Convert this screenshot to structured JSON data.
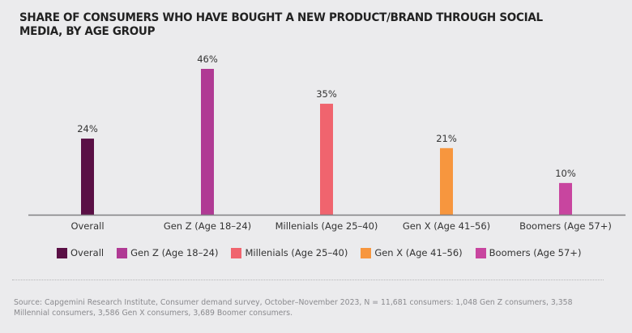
{
  "title": "SHARE OF CONSUMERS WHO HAVE BOUGHT A NEW PRODUCT/BRAND THROUGH SOCIAL MEDIA, BY AGE GROUP",
  "chart_data": {
    "type": "bar",
    "title": "SHARE OF CONSUMERS WHO HAVE BOUGHT A NEW PRODUCT/BRAND THROUGH SOCIAL MEDIA, BY AGE GROUP",
    "categories": [
      "Overall",
      "Gen Z (Age 18–24)",
      "Millenials (Age 25–40)",
      "Gen X (Age 41–56)",
      "Boomers (Age 57+)"
    ],
    "values": [
      24,
      46,
      35,
      21,
      10
    ],
    "value_labels": [
      "24%",
      "46%",
      "35%",
      "21%",
      "10%"
    ],
    "colors": [
      "#5a0f45",
      "#b03a94",
      "#f0646e",
      "#f7963e",
      "#c8459f"
    ],
    "unit": "%",
    "xlabel": "",
    "ylabel": "",
    "ylim": [
      0,
      46
    ],
    "grid": false,
    "legend": {
      "position": "bottom",
      "entries": [
        "Overall",
        "Gen Z (Age 18–24)",
        "Millenials (Age 25–40)",
        "Gen X (Age 41–56)",
        "Boomers (Age 57+)"
      ]
    }
  },
  "source": "Source: Capgemini Research Institute, Consumer demand survey, October–November 2023, N = 11,681 consumers: 1,048 Gen Z consumers, 3,358 Millennial consumers, 3,586 Gen X consumers, 3,689 Boomer consumers."
}
